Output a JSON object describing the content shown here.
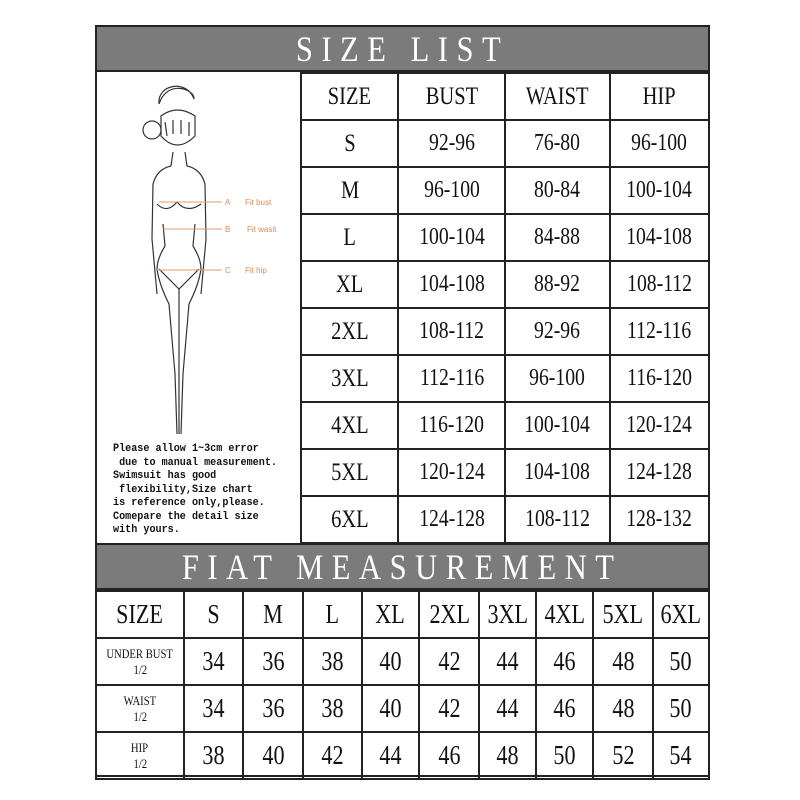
{
  "title": "SIZE LIST",
  "figure": {
    "labels": [
      {
        "letter": "A",
        "text": "Fit bust"
      },
      {
        "letter": "B",
        "text": "Fit wasit"
      },
      {
        "letter": "C",
        "text": "Fit hip"
      }
    ],
    "line_color": "#e29a6a"
  },
  "note": "Please allow 1~3cm error\n due to manual measurement.\nSwimsuit has good\n flexibility,Size chart\nis reference only,please.\nComepare the detail size\nwith yours.",
  "size_list": {
    "headers": [
      "SIZE",
      "BUST",
      "WAIST",
      "HIP"
    ],
    "rows": [
      [
        "S",
        "92-96",
        "76-80",
        "96-100"
      ],
      [
        "M",
        "96-100",
        "80-84",
        "100-104"
      ],
      [
        "L",
        "100-104",
        "84-88",
        "104-108"
      ],
      [
        "XL",
        "104-108",
        "88-92",
        "108-112"
      ],
      [
        "2XL",
        "108-112",
        "92-96",
        "112-116"
      ],
      [
        "3XL",
        "112-116",
        "96-100",
        "116-120"
      ],
      [
        "4XL",
        "116-120",
        "100-104",
        "120-124"
      ],
      [
        "5XL",
        "120-124",
        "104-108",
        "124-128"
      ],
      [
        "6XL",
        "124-128",
        "108-112",
        "128-132"
      ]
    ]
  },
  "flat_title": "FIAT MEASUREMENT",
  "flat": {
    "headers": [
      "SIZE",
      "S",
      "M",
      "L",
      "XL",
      "2XL",
      "3XL",
      "4XL",
      "5XL",
      "6XL"
    ],
    "rows": [
      {
        "label": "UNDER BUST",
        "sub": "1/2",
        "values": [
          "34",
          "36",
          "38",
          "40",
          "42",
          "44",
          "46",
          "48",
          "50"
        ]
      },
      {
        "label": "WAIST",
        "sub": "1/2",
        "values": [
          "34",
          "36",
          "38",
          "40",
          "42",
          "44",
          "46",
          "48",
          "50"
        ]
      },
      {
        "label": "HIP",
        "sub": "1/2",
        "values": [
          "38",
          "40",
          "42",
          "44",
          "46",
          "48",
          "50",
          "52",
          "54"
        ]
      }
    ]
  },
  "colors": {
    "bar": "#7b7b7b",
    "border": "#222222"
  }
}
